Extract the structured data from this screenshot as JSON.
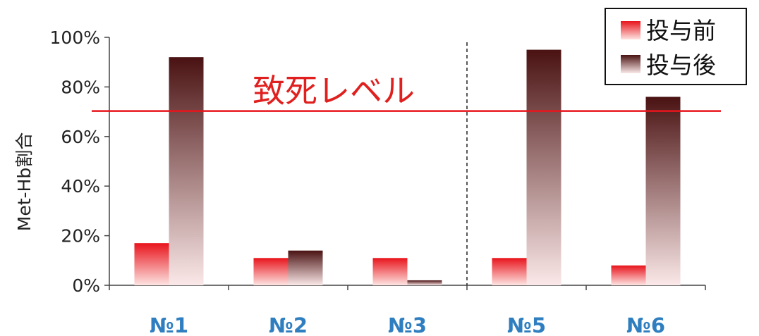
{
  "chart_data": {
    "type": "bar",
    "categories": [
      "№1",
      "№2",
      "№3",
      "№5",
      "№6"
    ],
    "series": [
      {
        "name": "投与前",
        "values": [
          17,
          11,
          11,
          11,
          8
        ]
      },
      {
        "name": "投与後",
        "values": [
          92,
          14,
          2,
          95,
          76
        ]
      }
    ],
    "ylabel": "Met-Hb割合",
    "xlabel": "",
    "title": "",
    "ylim": [
      0,
      100
    ],
    "yticks": [
      "0%",
      "20%",
      "40%",
      "60%",
      "80%",
      "100%"
    ],
    "grid": false,
    "legend_position": "top-right",
    "reference_line": {
      "value": 70,
      "label": "致死レベル",
      "color": "#e8141c"
    },
    "divider_after_category": "№3",
    "colors": {
      "before_top": "#e8141c",
      "before_bottom": "#fde4e2",
      "after_top": "#4a1212",
      "after_bottom": "#fbe8e8",
      "category_label": "#2f7fc0"
    }
  }
}
